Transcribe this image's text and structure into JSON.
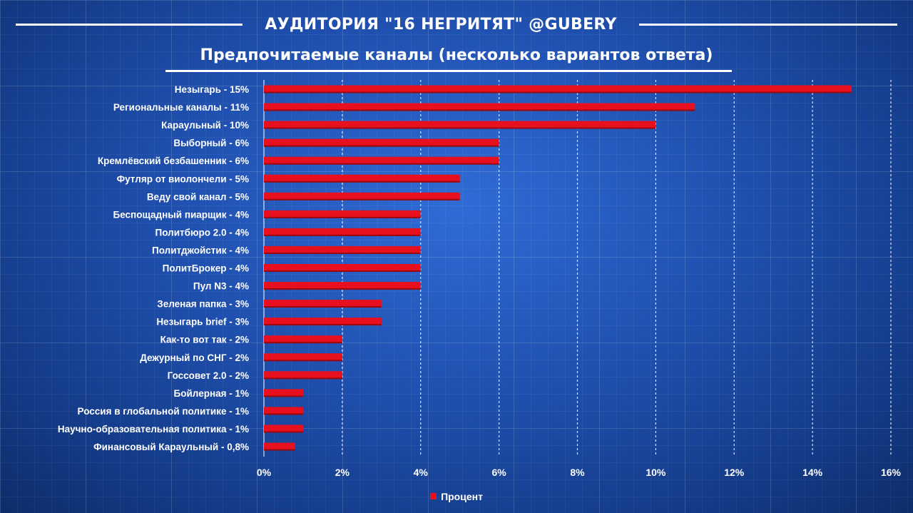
{
  "title": "АУДИТОРИЯ \"16 НЕГРИТЯТ\"  @GUBERY",
  "subtitle": "Предпочитаемые каналы (несколько вариантов ответа)",
  "colors": {
    "bar": "#e8101e",
    "background": "#1f4fae",
    "text": "#ffffff"
  },
  "chart_data": {
    "type": "bar",
    "orientation": "horizontal",
    "categories": [
      "Незыгарь - 15%",
      "Региональные каналы - 11%",
      "Караульный - 10%",
      "Выборный - 6%",
      "Кремлёвский безбашенник - 6%",
      "Футляр от виолончели - 5%",
      "Веду свой канал - 5%",
      "Беспощадный пиарщик - 4%",
      "Политбюро 2.0 - 4%",
      "Политджойстик - 4%",
      "ПолитБрокер - 4%",
      "Пул N3  - 4%",
      "Зеленая папка - 3%",
      "Незыгарь brief - 3%",
      "Как-то вот так - 2%",
      "Дежурный  по СНГ - 2%",
      "Госсовет 2.0 - 2%",
      "Бойлерная - 1%",
      "Россия в глобальной политике - 1%",
      "Научно-образовательная политика - 1%",
      "Финансовый Караульный - 0,8%"
    ],
    "series": [
      {
        "name": "Процент",
        "values": [
          15,
          11,
          10,
          6,
          6,
          5,
          5,
          4,
          4,
          4,
          4,
          4,
          3,
          3,
          2,
          2,
          2,
          1,
          1,
          1,
          0.8
        ]
      }
    ],
    "xticks": [
      "0%",
      "2%",
      "4%",
      "6%",
      "8%",
      "10%",
      "12%",
      "14%",
      "16%"
    ],
    "xlim": [
      0,
      16
    ],
    "grid": true,
    "legend": "bottom"
  }
}
